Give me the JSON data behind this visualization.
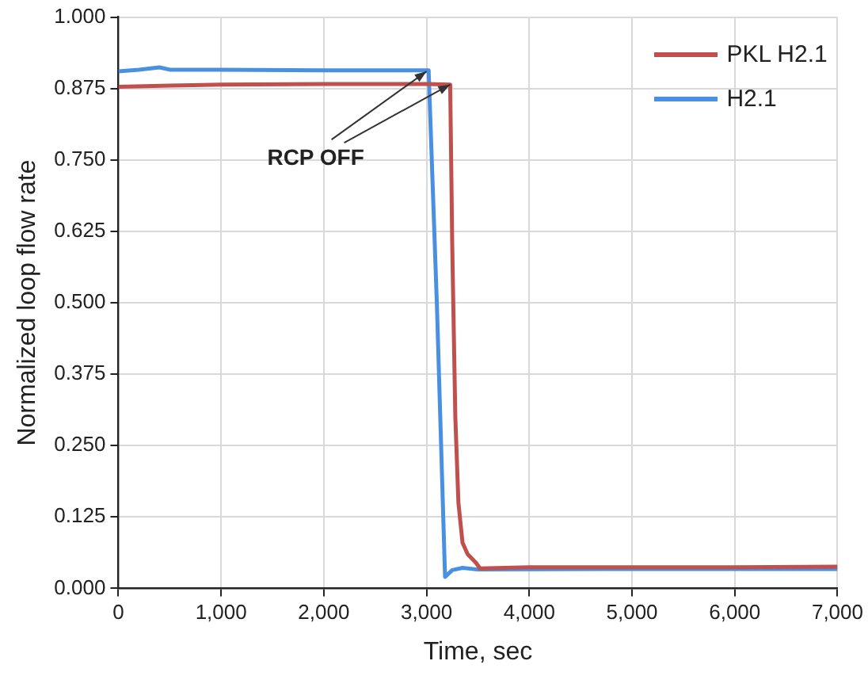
{
  "chart_data": {
    "type": "line",
    "xlabel": "Time, sec",
    "ylabel": "Normalized loop flow rate",
    "xlim": [
      0,
      7000
    ],
    "xticks": [
      {
        "value": 0,
        "label": "0"
      },
      {
        "value": 1000,
        "label": "1,000"
      },
      {
        "value": 2000,
        "label": "2,000"
      },
      {
        "value": 3000,
        "label": "3,000"
      },
      {
        "value": 4000,
        "label": "4,000"
      },
      {
        "value": 5000,
        "label": "5,000"
      },
      {
        "value": 6000,
        "label": "6,000"
      },
      {
        "value": 7000,
        "label": "7,000"
      }
    ],
    "ylim": [
      0,
      1
    ],
    "yticks": [
      {
        "value": 0,
        "label": "0.000"
      },
      {
        "value": 0.125,
        "label": "0.125"
      },
      {
        "value": 0.25,
        "label": "0.250"
      },
      {
        "value": 0.375,
        "label": "0.375"
      },
      {
        "value": 0.5,
        "label": "0.500"
      },
      {
        "value": 0.625,
        "label": "0.625"
      },
      {
        "value": 0.75,
        "label": "0.750"
      },
      {
        "value": 0.875,
        "label": "0.875"
      },
      {
        "value": 1,
        "label": "1.000"
      }
    ],
    "grid": true,
    "legend": "top right",
    "marker": "none",
    "line_style": "solid",
    "annotations": [
      {
        "text": "RCP OFF",
        "x": 3000,
        "y": 0.905
      }
    ],
    "series": [
      {
        "name": "PKL H2.1",
        "color": "#c0504d",
        "x": [
          0,
          500,
          1000,
          2000,
          3000,
          3230,
          3250,
          3280,
          3310,
          3350,
          3400,
          3480,
          3500,
          3520,
          4000,
          5000,
          6000,
          7000
        ],
        "values": [
          0.878,
          0.88,
          0.882,
          0.883,
          0.883,
          0.882,
          0.6,
          0.3,
          0.15,
          0.08,
          0.06,
          0.045,
          0.04,
          0.035,
          0.037,
          0.037,
          0.037,
          0.038
        ]
      },
      {
        "name": "H2.1",
        "color": "#4a90e2",
        "x": [
          0,
          200,
          400,
          500,
          1000,
          2000,
          3020,
          3100,
          3180,
          3250,
          3350,
          3500,
          5000,
          7000
        ],
        "values": [
          0.905,
          0.908,
          0.912,
          0.908,
          0.908,
          0.907,
          0.907,
          0.5,
          0.02,
          0.032,
          0.036,
          0.033,
          0.034,
          0.034
        ]
      }
    ]
  }
}
